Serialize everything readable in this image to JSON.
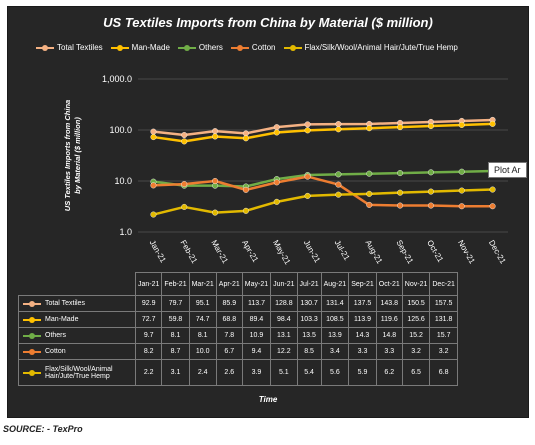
{
  "chart_data": {
    "type": "line",
    "title": "US Textiles Imports from China by Material ($ million)",
    "xlabel": "Time",
    "ylabel": "US Textiles Imports from China by Material ($ million)",
    "yscale": "log",
    "ylim": [
      1.0,
      1000.0
    ],
    "yticks": [
      "1.0",
      "10.0",
      "100.0",
      "1,000.0"
    ],
    "grid": true,
    "legend_position": "top",
    "categories": [
      "Jan-21",
      "Feb-21",
      "Mar-21",
      "Apr-21",
      "May-21",
      "Jun-21",
      "Jul-21",
      "Aug-21",
      "Sep-21",
      "Oct-21",
      "Nov-21",
      "Dec-21"
    ],
    "table_headers": [
      "Jan-21",
      "Feb-21",
      "Mar-21",
      "Apr-21",
      "May-21",
      "Jun-21",
      "Jul-21",
      "Aug-21",
      "Sep-21",
      "Oct-21",
      "Nov-21",
      "Dec-21"
    ],
    "series": [
      {
        "name": "Total Textiles",
        "color": "#f4b183",
        "values": [
          92.9,
          79.7,
          95.1,
          85.9,
          113.7,
          128.8,
          130.7,
          131.4,
          137.5,
          143.8,
          150.5,
          157.5
        ]
      },
      {
        "name": "Man-Made",
        "color": "#ffc000",
        "values": [
          72.7,
          59.8,
          74.7,
          68.8,
          89.4,
          98.4,
          103.3,
          108.5,
          113.9,
          119.6,
          125.6,
          131.8
        ]
      },
      {
        "name": "Others",
        "color": "#70ad47",
        "values": [
          9.7,
          8.1,
          8.1,
          7.8,
          10.9,
          13.1,
          13.5,
          13.9,
          14.3,
          14.8,
          15.2,
          15.7
        ]
      },
      {
        "name": "Cotton",
        "color": "#ed7d31",
        "values": [
          8.2,
          8.7,
          10.0,
          6.7,
          9.4,
          12.2,
          8.5,
          3.4,
          3.3,
          3.3,
          3.2,
          3.2
        ]
      },
      {
        "name": "Flax/Silk/Wool/Animal Hair/Jute/True Hemp",
        "color": "#e2b900",
        "values": [
          2.2,
          3.1,
          2.4,
          2.6,
          3.9,
          5.1,
          5.4,
          5.6,
          5.9,
          6.2,
          6.5,
          6.8
        ]
      }
    ],
    "table_rows": [
      {
        "label": "Total Textiles",
        "values": [
          "92.9",
          "79.7",
          "95.1",
          "85.9",
          "113.7",
          "128.8",
          "130.7",
          "131.4",
          "137.5",
          "143.8",
          "150.5",
          "157.5"
        ]
      },
      {
        "label": "Man-Made",
        "values": [
          "72.7",
          "59.8",
          "74.7",
          "68.8",
          "89.4",
          "98.4",
          "103.3",
          "108.5",
          "113.9",
          "119.6",
          "125.6",
          "131.8"
        ]
      },
      {
        "label": "Others",
        "values": [
          "9.7",
          "8.1",
          "8.1",
          "7.8",
          "10.9",
          "13.1",
          "13.5",
          "13.9",
          "14.3",
          "14.8",
          "15.2",
          "15.7"
        ]
      },
      {
        "label": "Cotton",
        "values": [
          "8.2",
          "8.7",
          "10.0",
          "6.7",
          "9.4",
          "12.2",
          "8.5",
          "3.4",
          "3.3",
          "3.3",
          "3.2",
          "3.2"
        ]
      },
      {
        "label": "Flax/Silk/Wool/Animal Hair/Jute/True Hemp",
        "values": [
          "2.2",
          "3.1",
          "2.4",
          "2.6",
          "3.9",
          "5.1",
          "5.4",
          "5.6",
          "5.9",
          "6.2",
          "6.5",
          "6.8"
        ]
      }
    ]
  },
  "tooltip": "Plot Ar",
  "source": "SOURCE: - TexPro"
}
